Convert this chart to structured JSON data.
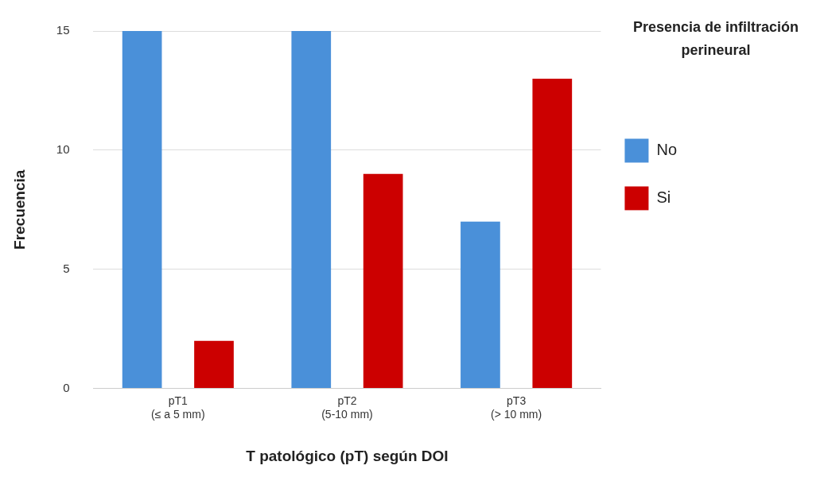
{
  "chart_data": {
    "type": "bar",
    "xlabel": "T patológico (pT) según DOI",
    "ylabel": "Frecuencia",
    "legend_title": "Presencia de infiltración perineural",
    "categories": [
      "pT1\n(≤ a 5 mm)",
      "pT2\n(5-10 mm)",
      "pT3\n(> 10 mm)"
    ],
    "series": [
      {
        "name": "No",
        "color": "#4a90d9",
        "values": [
          15,
          15,
          7
        ]
      },
      {
        "name": "Si",
        "color": "#cc0000",
        "values": [
          2,
          9,
          13
        ]
      }
    ],
    "ylim": [
      0,
      15
    ],
    "yticks": [
      0,
      5,
      10,
      15
    ],
    "grid": "y",
    "legend": "right"
  }
}
